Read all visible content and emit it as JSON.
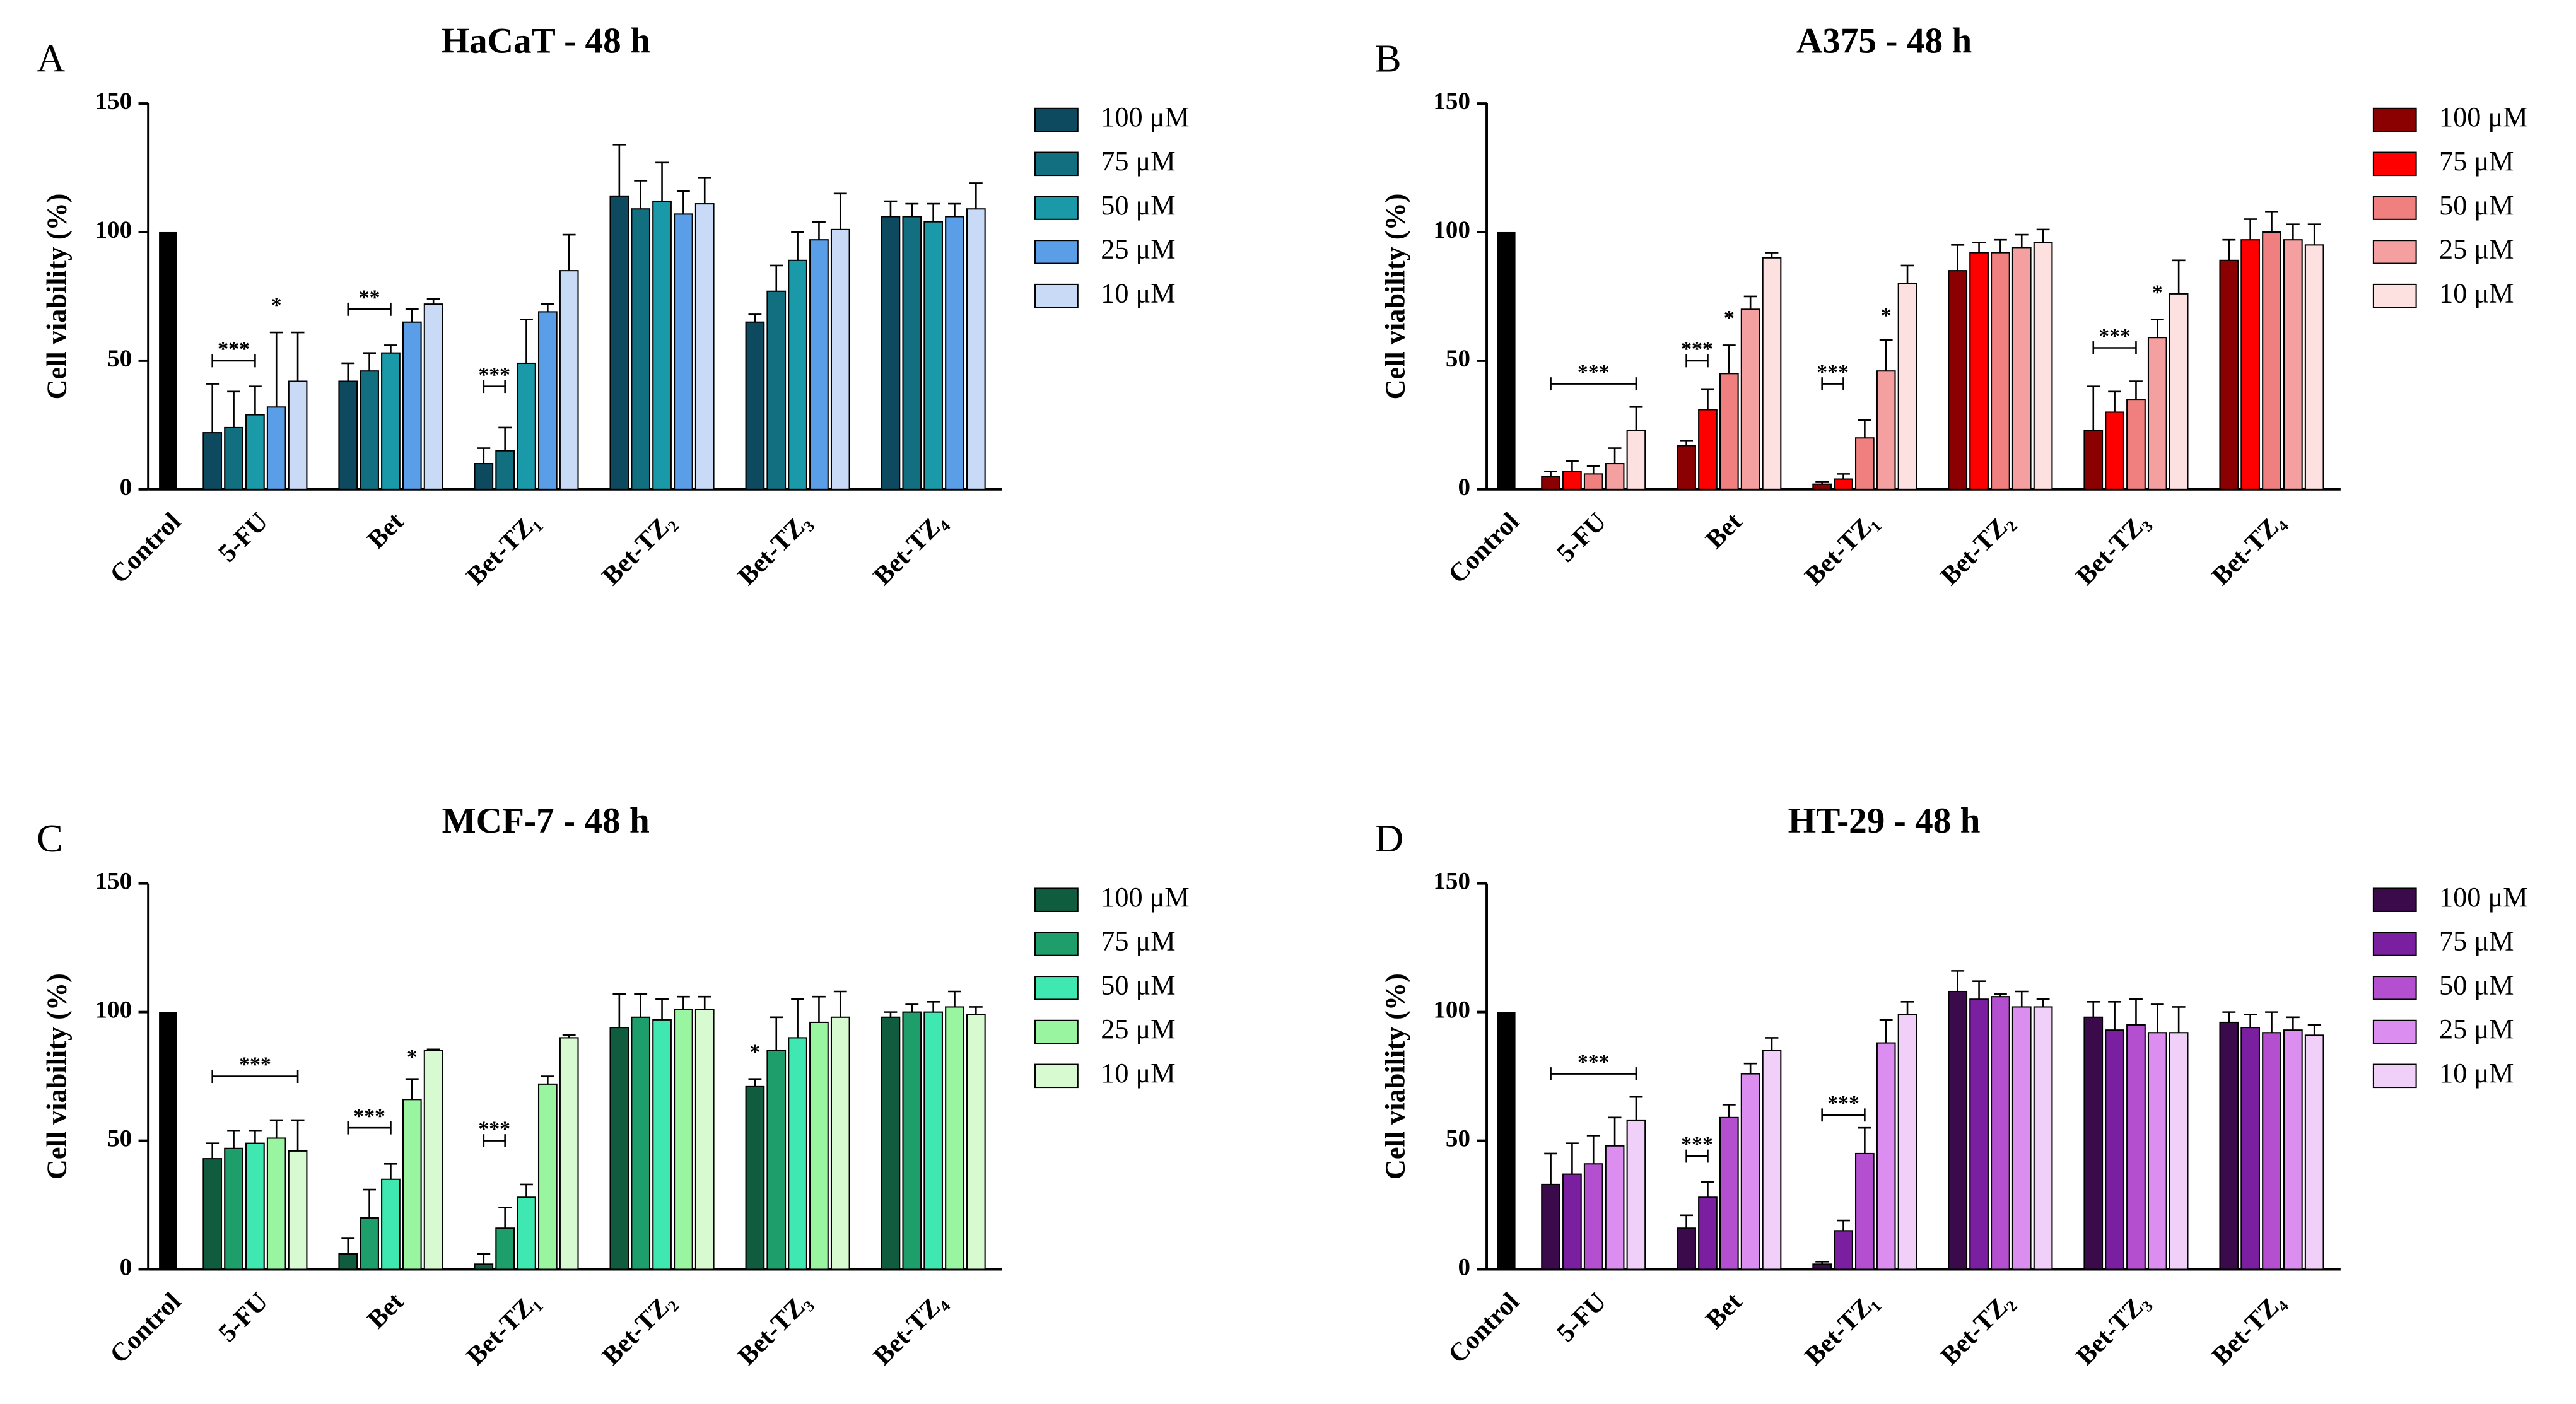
{
  "chart_data": [
    {
      "type": "bar",
      "panel": "A",
      "title": "HaCaT - 48 h",
      "y_label": "Cell viability (%)",
      "categories": [
        "Control",
        "5-FU",
        "Bet",
        "Bet-TZ₁",
        "Bet-TZ₂",
        "Bet-TZ₃",
        "Bet-TZ₄"
      ],
      "control": {
        "color": "#000000",
        "value": 100
      },
      "series": [
        {
          "name": "100 μM",
          "color": "#0d4a60",
          "values": [
            null,
            22,
            42,
            10,
            114,
            65,
            106
          ],
          "errors": [
            null,
            19,
            7,
            6,
            20,
            3,
            6
          ]
        },
        {
          "name": "75 μM",
          "color": "#116f80",
          "values": [
            null,
            24,
            46,
            15,
            109,
            77,
            106
          ],
          "errors": [
            null,
            14,
            7,
            9,
            11,
            10,
            5
          ]
        },
        {
          "name": "50 μM",
          "color": "#1a9aa8",
          "values": [
            null,
            29,
            53,
            49,
            112,
            89,
            104
          ],
          "errors": [
            null,
            11,
            3,
            17,
            15,
            11,
            7
          ]
        },
        {
          "name": "25 μM",
          "color": "#5a9ee8",
          "values": [
            null,
            32,
            65,
            69,
            107,
            97,
            106
          ],
          "errors": [
            null,
            29,
            5,
            3,
            9,
            7,
            5
          ]
        },
        {
          "name": "10 μM",
          "color": "#c8daf5",
          "values": [
            null,
            42,
            72,
            85,
            111,
            101,
            109
          ],
          "errors": [
            null,
            19,
            2,
            14,
            10,
            14,
            10
          ]
        }
      ],
      "annotations": [
        {
          "text": "***",
          "category": 1,
          "series_from": 0,
          "series_to": 2,
          "y": 50
        },
        {
          "text": "*",
          "category": 1,
          "series_from": 3,
          "series_to": 3,
          "y": 67
        },
        {
          "text": "**",
          "category": 2,
          "series_from": 0,
          "series_to": 2,
          "y": 70
        },
        {
          "text": "***",
          "category": 3,
          "series_from": 0,
          "series_to": 1,
          "y": 40
        }
      ],
      "ylim": [
        0,
        150
      ],
      "yticks": [
        0,
        50,
        100,
        150
      ]
    },
    {
      "type": "bar",
      "panel": "B",
      "title": "A375 - 48 h",
      "y_label": "Cell viability (%)",
      "categories": [
        "Control",
        "5-FU",
        "Bet",
        "Bet-TZ₁",
        "Bet-TZ₂",
        "Bet-TZ₃",
        "Bet-TZ₄"
      ],
      "control": {
        "color": "#000000",
        "value": 100
      },
      "series": [
        {
          "name": "100 μM",
          "color": "#8b0000",
          "values": [
            null,
            5,
            17,
            2,
            85,
            23,
            89
          ],
          "errors": [
            null,
            2,
            2,
            1,
            10,
            17,
            8
          ]
        },
        {
          "name": "75 μM",
          "color": "#ff0000",
          "values": [
            null,
            7,
            31,
            4,
            92,
            30,
            97
          ],
          "errors": [
            null,
            4,
            8,
            2,
            4,
            8,
            8
          ]
        },
        {
          "name": "50 μM",
          "color": "#f08080",
          "values": [
            null,
            6,
            45,
            20,
            92,
            35,
            100
          ],
          "errors": [
            null,
            3,
            11,
            7,
            5,
            7,
            8
          ]
        },
        {
          "name": "25 μM",
          "color": "#f4a0a0",
          "values": [
            null,
            10,
            70,
            46,
            94,
            59,
            97
          ],
          "errors": [
            null,
            6,
            5,
            12,
            5,
            7,
            6
          ]
        },
        {
          "name": "10 μM",
          "color": "#fde0e0",
          "values": [
            null,
            23,
            90,
            80,
            96,
            76,
            95
          ],
          "errors": [
            null,
            9,
            2,
            7,
            5,
            13,
            8
          ]
        }
      ],
      "annotations": [
        {
          "text": "***",
          "category": 1,
          "series_from": 0,
          "series_to": 4,
          "y": 41
        },
        {
          "text": "***",
          "category": 2,
          "series_from": 0,
          "series_to": 1,
          "y": 50
        },
        {
          "text": "*",
          "category": 2,
          "series_from": 2,
          "series_to": 2,
          "y": 62
        },
        {
          "text": "***",
          "category": 3,
          "series_from": 0,
          "series_to": 1,
          "y": 41
        },
        {
          "text": "*",
          "category": 3,
          "series_from": 3,
          "series_to": 3,
          "y": 63
        },
        {
          "text": "***",
          "category": 5,
          "series_from": 0,
          "series_to": 2,
          "y": 55
        },
        {
          "text": "*",
          "category": 5,
          "series_from": 3,
          "series_to": 3,
          "y": 72
        }
      ],
      "ylim": [
        0,
        150
      ],
      "yticks": [
        0,
        50,
        100,
        150
      ]
    },
    {
      "type": "bar",
      "panel": "C",
      "title": "MCF-7 - 48 h",
      "y_label": "Cell viability (%)",
      "categories": [
        "Control",
        "5-FU",
        "Bet",
        "Bet-TZ₁",
        "Bet-TZ₂",
        "Bet-TZ₃",
        "Bet-TZ₄"
      ],
      "control": {
        "color": "#000000",
        "value": 100
      },
      "series": [
        {
          "name": "100 μM",
          "color": "#0f5c3e",
          "values": [
            null,
            43,
            6,
            2,
            94,
            71,
            98
          ],
          "errors": [
            null,
            6,
            6,
            4,
            13,
            3,
            2
          ]
        },
        {
          "name": "75 μM",
          "color": "#1e9e6a",
          "values": [
            null,
            47,
            20,
            16,
            98,
            85,
            100
          ],
          "errors": [
            null,
            7,
            11,
            8,
            9,
            13,
            3
          ]
        },
        {
          "name": "50 μM",
          "color": "#3ee8b0",
          "values": [
            null,
            49,
            35,
            28,
            97,
            90,
            100
          ],
          "errors": [
            null,
            5,
            6,
            5,
            8,
            15,
            4
          ]
        },
        {
          "name": "25 μM",
          "color": "#9af5a0",
          "values": [
            null,
            51,
            66,
            72,
            101,
            96,
            102
          ],
          "errors": [
            null,
            7,
            8,
            3,
            5,
            10,
            6
          ]
        },
        {
          "name": "10 μM",
          "color": "#d8fad0",
          "values": [
            null,
            46,
            85,
            90,
            101,
            98,
            99
          ],
          "errors": [
            null,
            12,
            0.5,
            1,
            5,
            10,
            3
          ]
        }
      ],
      "annotations": [
        {
          "text": "***",
          "category": 1,
          "series_from": 0,
          "series_to": 4,
          "y": 75
        },
        {
          "text": "***",
          "category": 2,
          "series_from": 0,
          "series_to": 2,
          "y": 55
        },
        {
          "text": "*",
          "category": 2,
          "series_from": 3,
          "series_to": 3,
          "y": 78
        },
        {
          "text": "***",
          "category": 3,
          "series_from": 0,
          "series_to": 1,
          "y": 50
        },
        {
          "text": "*",
          "category": 5,
          "series_from": 0,
          "series_to": 0,
          "y": 80
        }
      ],
      "ylim": [
        0,
        150
      ],
      "yticks": [
        0,
        50,
        100,
        150
      ]
    },
    {
      "type": "bar",
      "panel": "D",
      "title": "HT-29 - 48 h",
      "y_label": "Cell viability (%)",
      "categories": [
        "Control",
        "5-FU",
        "Bet",
        "Bet-TZ₁",
        "Bet-TZ₂",
        "Bet-TZ₃",
        "Bet-TZ₄"
      ],
      "control": {
        "color": "#000000",
        "value": 100
      },
      "series": [
        {
          "name": "100 μM",
          "color": "#3a0a4a",
          "values": [
            null,
            33,
            16,
            2,
            108,
            98,
            96
          ],
          "errors": [
            null,
            12,
            5,
            1,
            8,
            6,
            4
          ]
        },
        {
          "name": "75 μM",
          "color": "#7a1fa0",
          "values": [
            null,
            37,
            28,
            15,
            105,
            93,
            94
          ],
          "errors": [
            null,
            12,
            6,
            4,
            7,
            11,
            5
          ]
        },
        {
          "name": "50 μM",
          "color": "#b44fd0",
          "values": [
            null,
            41,
            59,
            45,
            106,
            95,
            92
          ],
          "errors": [
            null,
            11,
            5,
            10,
            1,
            10,
            8
          ]
        },
        {
          "name": "25 μM",
          "color": "#dc8ef0",
          "values": [
            null,
            48,
            76,
            88,
            102,
            92,
            93
          ],
          "errors": [
            null,
            11,
            4,
            9,
            6,
            11,
            5
          ]
        },
        {
          "name": "10 μM",
          "color": "#f0d0f8",
          "values": [
            null,
            58,
            85,
            99,
            102,
            92,
            91
          ],
          "errors": [
            null,
            9,
            5,
            5,
            3,
            10,
            4
          ]
        }
      ],
      "annotations": [
        {
          "text": "***",
          "category": 1,
          "series_from": 0,
          "series_to": 4,
          "y": 76
        },
        {
          "text": "***",
          "category": 2,
          "series_from": 0,
          "series_to": 1,
          "y": 44
        },
        {
          "text": "***",
          "category": 3,
          "series_from": 0,
          "series_to": 2,
          "y": 60
        }
      ],
      "ylim": [
        0,
        150
      ],
      "yticks": [
        0,
        50,
        100,
        150
      ]
    }
  ]
}
